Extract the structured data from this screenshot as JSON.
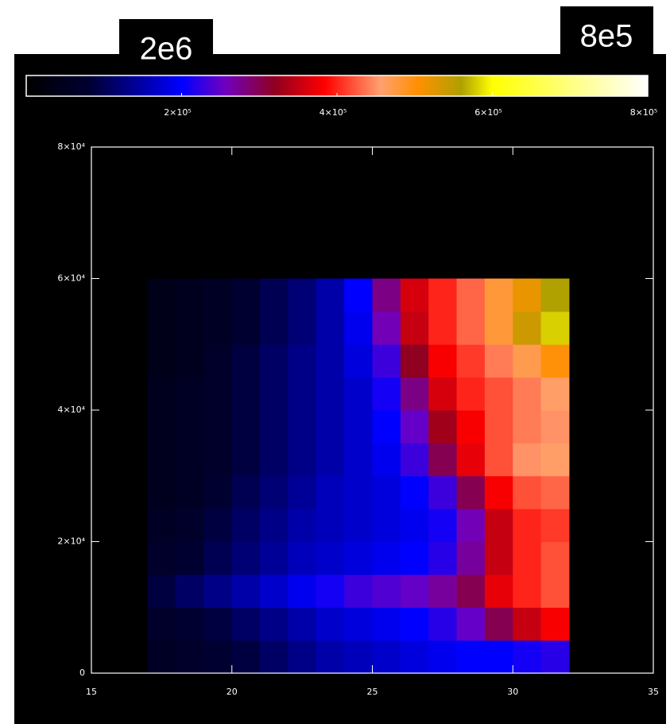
{
  "chart_data": {
    "type": "heatmap",
    "annotations": [
      "2e6",
      "8e5"
    ],
    "x_edges": [
      17,
      18,
      19,
      20,
      21,
      22,
      23,
      24,
      25,
      26,
      27,
      28,
      29,
      30,
      31,
      32
    ],
    "y_edges": [
      0,
      5000,
      10000,
      15000,
      20000,
      25000,
      30000,
      35000,
      40000,
      45000,
      50000,
      55000,
      60000
    ],
    "z": [
      [
        60000,
        70000,
        80000,
        90000,
        110000,
        130000,
        150000,
        160000,
        170000,
        180000,
        190000,
        200000,
        200000,
        210000,
        220000
      ],
      [
        70000,
        80000,
        90000,
        110000,
        130000,
        150000,
        170000,
        180000,
        190000,
        200000,
        220000,
        250000,
        300000,
        350000,
        380000
      ],
      [
        90000,
        110000,
        130000,
        150000,
        170000,
        190000,
        210000,
        230000,
        240000,
        250000,
        270000,
        300000,
        370000,
        400000,
        420000
      ],
      [
        70000,
        80000,
        100000,
        120000,
        140000,
        160000,
        170000,
        180000,
        190000,
        200000,
        220000,
        270000,
        350000,
        400000,
        420000
      ],
      [
        60000,
        70000,
        90000,
        110000,
        130000,
        150000,
        160000,
        170000,
        180000,
        190000,
        210000,
        260000,
        350000,
        400000,
        410000
      ],
      [
        50000,
        60000,
        80000,
        100000,
        120000,
        140000,
        160000,
        170000,
        180000,
        200000,
        230000,
        300000,
        380000,
        420000,
        430000
      ],
      [
        50000,
        60000,
        70000,
        90000,
        110000,
        130000,
        150000,
        170000,
        190000,
        230000,
        300000,
        370000,
        420000,
        450000,
        460000
      ],
      [
        50000,
        60000,
        70000,
        90000,
        110000,
        130000,
        150000,
        170000,
        200000,
        250000,
        330000,
        380000,
        420000,
        440000,
        450000
      ],
      [
        50000,
        60000,
        70000,
        90000,
        110000,
        130000,
        150000,
        170000,
        210000,
        280000,
        360000,
        400000,
        420000,
        440000,
        460000
      ],
      [
        40000,
        50000,
        70000,
        90000,
        110000,
        130000,
        150000,
        180000,
        230000,
        320000,
        380000,
        410000,
        440000,
        470000,
        500000
      ],
      [
        40000,
        50000,
        60000,
        80000,
        100000,
        120000,
        150000,
        190000,
        260000,
        350000,
        400000,
        430000,
        480000,
        540000,
        580000
      ],
      [
        40000,
        50000,
        60000,
        80000,
        100000,
        120000,
        150000,
        200000,
        280000,
        360000,
        400000,
        430000,
        480000,
        520000,
        560000
      ]
    ],
    "xlim": [
      15,
      35
    ],
    "xticks": [
      15,
      20,
      25,
      30,
      35
    ],
    "ylim": [
      0,
      80000
    ],
    "yticks": [
      0,
      {
        "value": 20000,
        "label": "2×10⁴"
      },
      {
        "value": 40000,
        "label": "4×10⁴"
      },
      {
        "value": 60000,
        "label": "6×10⁴"
      },
      {
        "value": 80000,
        "label": "8×10⁴"
      }
    ],
    "clim": [
      0,
      800000
    ],
    "cticks": [
      {
        "value": 200000,
        "label": "2×10⁵"
      },
      {
        "value": 400000,
        "label": "4×10⁵"
      },
      {
        "value": 600000,
        "label": "6×10⁵"
      },
      {
        "value": 800000,
        "label": "8×10⁵"
      }
    ],
    "colorscale": [
      [
        0,
        "#000000"
      ],
      [
        0.1,
        "#000030"
      ],
      [
        0.25,
        "#0000ff"
      ],
      [
        0.32,
        "#7000c0"
      ],
      [
        0.4,
        "#900020"
      ],
      [
        0.48,
        "#ff0000"
      ],
      [
        0.57,
        "#ffa070"
      ],
      [
        0.63,
        "#ff9000"
      ],
      [
        0.7,
        "#b0a000"
      ],
      [
        0.75,
        "#ffff00"
      ],
      [
        1,
        "#ffffff"
      ]
    ]
  }
}
